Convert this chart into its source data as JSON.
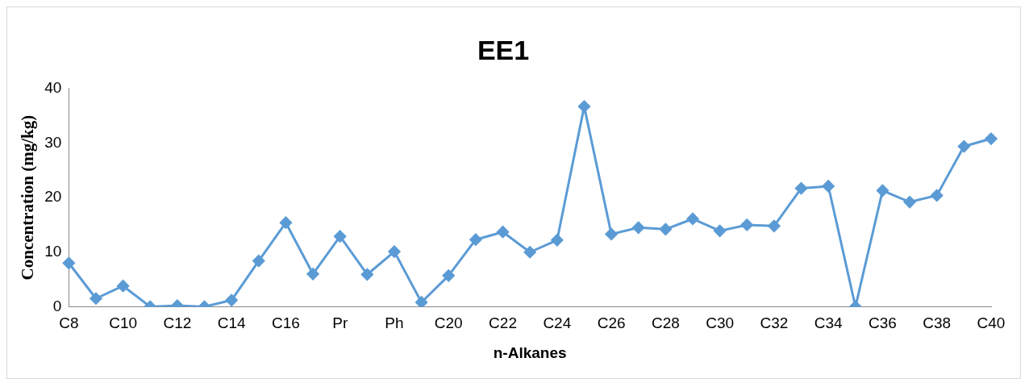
{
  "chart_data": {
    "type": "line",
    "title": "EE1",
    "xlabel": "n-Alkanes",
    "ylabel": "Concentration (mg/kg)",
    "categories": [
      "C8",
      null,
      "C10",
      null,
      "C12",
      null,
      "C14",
      null,
      "C16",
      null,
      "Pr",
      null,
      "Ph",
      null,
      "C20",
      null,
      "C22",
      null,
      "C24",
      null,
      "C26",
      null,
      "C28",
      null,
      "C30",
      null,
      "C32",
      null,
      "C34",
      null,
      "C36",
      null,
      "C38",
      null,
      "C40"
    ],
    "series": [
      {
        "color": "#5b9bd5",
        "values": [
          8.0,
          1.5,
          3.8,
          0,
          0.2,
          0,
          1.2,
          8.4,
          15.4,
          6.0,
          12.9,
          5.9,
          10.1,
          0.8,
          5.7,
          12.3,
          13.7,
          10.0,
          12.2,
          36.7,
          13.3,
          14.5,
          14.2,
          16.1,
          13.9,
          15.0,
          14.8,
          21.7,
          22.1,
          0,
          21.3,
          19.2,
          20.4,
          29.4,
          30.8
        ]
      }
    ],
    "ylim": [
      0,
      40
    ],
    "yticks": [
      0,
      10,
      20,
      30,
      40
    ],
    "grid": false,
    "legend": false,
    "marker": "diamond",
    "line_style": "solid"
  }
}
